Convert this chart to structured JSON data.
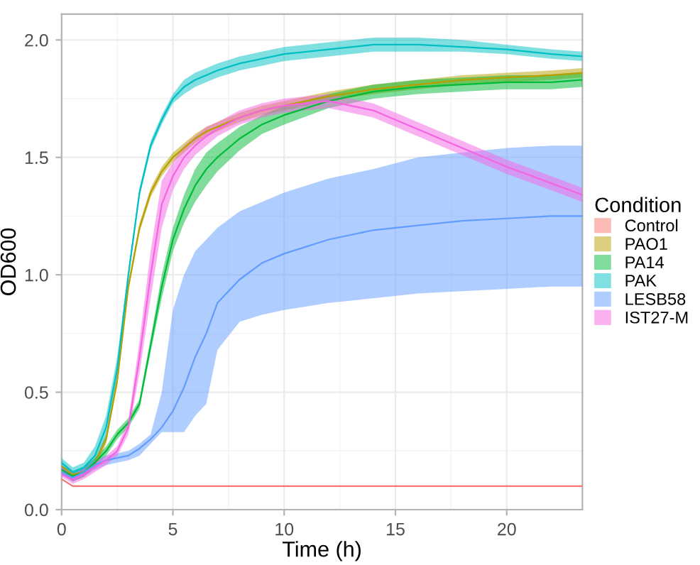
{
  "chart_data": {
    "type": "line",
    "xlabel": "Time (h)",
    "ylabel": "OD600",
    "legend_title": "Condition",
    "legend": "right",
    "grid": true,
    "marker": "none",
    "line_style": "solid",
    "xlim": [
      0,
      23.4
    ],
    "ylim": [
      0,
      2.11
    ],
    "xticks": [
      0,
      5,
      10,
      15,
      20
    ],
    "yticks": [
      {
        "value": 0,
        "label": "0.0"
      },
      {
        "value": 0.5,
        "label": "0.5"
      },
      {
        "value": 1,
        "label": "1.0"
      },
      {
        "value": 1.5,
        "label": "1.5"
      },
      {
        "value": 2,
        "label": "2.0"
      }
    ],
    "x": [
      0,
      0.5,
      1,
      1.5,
      2,
      2.5,
      3,
      3.5,
      4,
      4.5,
      5,
      5.5,
      6,
      6.5,
      7,
      8,
      9,
      10,
      12,
      14,
      16,
      18,
      20,
      22,
      23.4
    ],
    "series": [
      {
        "name": "Control",
        "color": "#f8766d",
        "values": [
          0.13,
          0.1,
          0.1,
          0.1,
          0.1,
          0.1,
          0.1,
          0.1,
          0.1,
          0.1,
          0.1,
          0.1,
          0.1,
          0.1,
          0.1,
          0.1,
          0.1,
          0.1,
          0.1,
          0.1,
          0.1,
          0.1,
          0.1,
          0.1,
          0.1
        ]
      },
      {
        "name": "PAO1",
        "color": "#b79f00",
        "values": [
          0.185,
          0.15,
          0.16,
          0.2,
          0.3,
          0.55,
          0.95,
          1.2,
          1.35,
          1.44,
          1.5,
          1.54,
          1.58,
          1.61,
          1.63,
          1.67,
          1.7,
          1.72,
          1.76,
          1.79,
          1.81,
          1.83,
          1.84,
          1.85,
          1.86
        ],
        "lower": [
          0.15,
          0.12,
          0.14,
          0.18,
          0.28,
          0.53,
          0.93,
          1.18,
          1.33,
          1.42,
          1.48,
          1.52,
          1.56,
          1.59,
          1.61,
          1.65,
          1.68,
          1.7,
          1.74,
          1.77,
          1.79,
          1.81,
          1.82,
          1.83,
          1.84
        ],
        "upper": [
          0.19,
          0.16,
          0.18,
          0.22,
          0.32,
          0.57,
          0.97,
          1.22,
          1.37,
          1.46,
          1.52,
          1.56,
          1.6,
          1.63,
          1.65,
          1.69,
          1.72,
          1.74,
          1.78,
          1.81,
          1.83,
          1.85,
          1.86,
          1.87,
          1.88
        ]
      },
      {
        "name": "PA14",
        "color": "#00ba38",
        "values": [
          0.17,
          0.142,
          0.16,
          0.2,
          0.25,
          0.32,
          0.37,
          0.45,
          0.7,
          0.95,
          1.15,
          1.28,
          1.38,
          1.45,
          1.5,
          1.58,
          1.64,
          1.68,
          1.74,
          1.78,
          1.8,
          1.81,
          1.82,
          1.82,
          1.83
        ],
        "lower": [
          0.15,
          0.12,
          0.14,
          0.18,
          0.23,
          0.3,
          0.35,
          0.43,
          0.67,
          0.9,
          1.1,
          1.22,
          1.31,
          1.38,
          1.44,
          1.53,
          1.6,
          1.64,
          1.71,
          1.75,
          1.77,
          1.78,
          1.79,
          1.79,
          1.8
        ],
        "upper": [
          0.19,
          0.16,
          0.18,
          0.22,
          0.27,
          0.34,
          0.39,
          0.47,
          0.73,
          1.0,
          1.2,
          1.34,
          1.45,
          1.52,
          1.56,
          1.63,
          1.68,
          1.72,
          1.77,
          1.81,
          1.83,
          1.84,
          1.85,
          1.85,
          1.86
        ]
      },
      {
        "name": "PAK",
        "color": "#00bfc4",
        "values": [
          0.2,
          0.16,
          0.18,
          0.23,
          0.35,
          0.6,
          1.0,
          1.35,
          1.55,
          1.66,
          1.75,
          1.8,
          1.83,
          1.85,
          1.87,
          1.9,
          1.92,
          1.94,
          1.96,
          1.98,
          1.98,
          1.97,
          1.96,
          1.94,
          1.93
        ],
        "lower": [
          0.17,
          0.13,
          0.15,
          0.2,
          0.3,
          0.55,
          0.98,
          1.33,
          1.53,
          1.64,
          1.73,
          1.77,
          1.8,
          1.82,
          1.84,
          1.87,
          1.89,
          1.91,
          1.93,
          1.95,
          1.95,
          1.95,
          1.94,
          1.92,
          1.91
        ],
        "upper": [
          0.22,
          0.18,
          0.2,
          0.27,
          0.4,
          0.65,
          1.02,
          1.37,
          1.57,
          1.68,
          1.77,
          1.83,
          1.86,
          1.88,
          1.9,
          1.93,
          1.95,
          1.97,
          1.99,
          2.01,
          2.01,
          2.0,
          1.98,
          1.96,
          1.95
        ]
      },
      {
        "name": "LESB58",
        "color": "#619cff",
        "values": [
          0.16,
          0.135,
          0.16,
          0.19,
          0.21,
          0.22,
          0.23,
          0.26,
          0.3,
          0.35,
          0.42,
          0.52,
          0.65,
          0.75,
          0.88,
          0.98,
          1.05,
          1.09,
          1.15,
          1.19,
          1.21,
          1.23,
          1.24,
          1.25,
          1.25
        ],
        "lower": [
          0.15,
          0.12,
          0.14,
          0.17,
          0.19,
          0.2,
          0.21,
          0.23,
          0.28,
          0.33,
          0.33,
          0.33,
          0.4,
          0.45,
          0.68,
          0.8,
          0.83,
          0.85,
          0.88,
          0.9,
          0.92,
          0.93,
          0.94,
          0.95,
          0.95
        ],
        "upper": [
          0.19,
          0.16,
          0.18,
          0.21,
          0.23,
          0.24,
          0.25,
          0.28,
          0.32,
          0.5,
          0.85,
          1.0,
          1.1,
          1.15,
          1.2,
          1.27,
          1.31,
          1.35,
          1.41,
          1.45,
          1.5,
          1.52,
          1.54,
          1.55,
          1.55
        ]
      },
      {
        "name": "IST27-M",
        "color": "#f564e3",
        "values": [
          0.15,
          0.128,
          0.15,
          0.18,
          0.21,
          0.25,
          0.35,
          0.65,
          1.0,
          1.3,
          1.42,
          1.5,
          1.55,
          1.59,
          1.62,
          1.67,
          1.7,
          1.72,
          1.74,
          1.7,
          1.62,
          1.54,
          1.46,
          1.39,
          1.34
        ],
        "lower": [
          0.14,
          0.11,
          0.13,
          0.16,
          0.19,
          0.23,
          0.32,
          0.58,
          0.9,
          1.2,
          1.36,
          1.45,
          1.51,
          1.55,
          1.59,
          1.64,
          1.67,
          1.69,
          1.71,
          1.67,
          1.59,
          1.51,
          1.43,
          1.36,
          1.31
        ],
        "upper": [
          0.18,
          0.15,
          0.17,
          0.2,
          0.23,
          0.27,
          0.38,
          0.72,
          1.1,
          1.4,
          1.48,
          1.55,
          1.59,
          1.63,
          1.65,
          1.7,
          1.73,
          1.75,
          1.77,
          1.73,
          1.65,
          1.57,
          1.49,
          1.42,
          1.37
        ]
      }
    ]
  }
}
